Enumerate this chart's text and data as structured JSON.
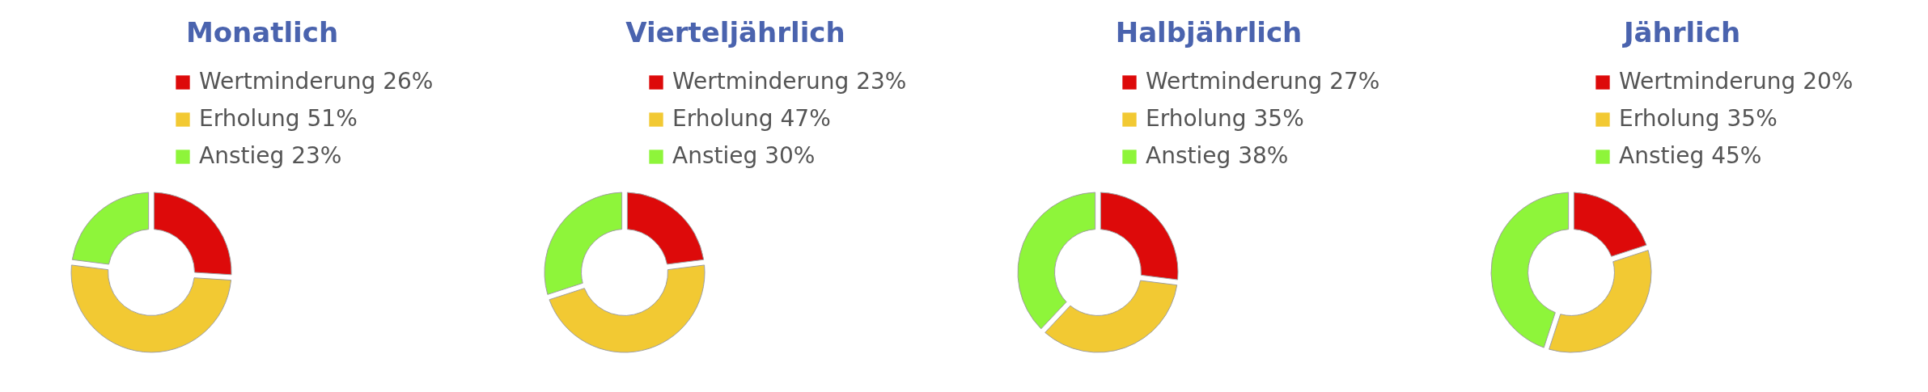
{
  "chart_data": [
    {
      "type": "donut",
      "title": "Monatlich",
      "categories": [
        "Wertminderung 26%",
        "Erholung 51%",
        "Anstieg 23%"
      ],
      "values": [
        26,
        51,
        23
      ],
      "colors": [
        "#dd0a0a",
        "#f2c933",
        "#8ef53a"
      ],
      "legend": "top right"
    },
    {
      "type": "donut",
      "title": "Vierteljährlich",
      "categories": [
        "Wertminderung 23%",
        "Erholung 47%",
        "Anstieg 30%"
      ],
      "values": [
        23,
        47,
        30
      ],
      "colors": [
        "#dd0a0a",
        "#f2c933",
        "#8ef53a"
      ],
      "legend": "top right"
    },
    {
      "type": "donut",
      "title": "Halbjährlich",
      "categories": [
        "Wertminderung 27%",
        "Erholung 35%",
        "Anstieg 38%"
      ],
      "values": [
        27,
        35,
        38
      ],
      "colors": [
        "#dd0a0a",
        "#f2c933",
        "#8ef53a"
      ],
      "legend": "top right"
    },
    {
      "type": "donut",
      "title": "Jährlich",
      "categories": [
        "Wertminderung 20%",
        "Erholung 35%",
        "Anstieg 45%"
      ],
      "values": [
        20,
        35,
        45
      ],
      "colors": [
        "#dd0a0a",
        "#f2c933",
        "#8ef53a"
      ],
      "legend": "top right"
    }
  ]
}
